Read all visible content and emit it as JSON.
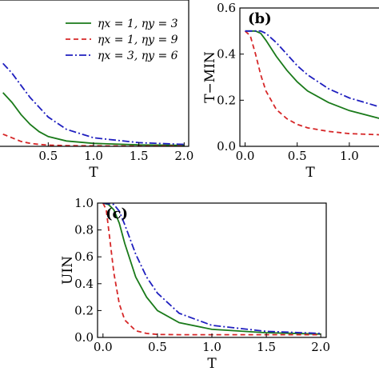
{
  "chart_data": [
    {
      "panel": "",
      "type": "line",
      "xlabel": "T",
      "ylabel": "",
      "xlim": [
        -0.05,
        2.05
      ],
      "ylim": [
        0,
        0.6
      ],
      "xticks": [
        "0.5",
        "1.0",
        "1.5",
        "2.0"
      ],
      "xtick_values": [
        0.5,
        1.0,
        1.5,
        2.0
      ],
      "yticks": [],
      "legend": "top-right",
      "series": [
        {
          "name": "ηx = 1, ηy = 3",
          "color": "#1a7a1a",
          "dash": "solid",
          "x": [
            0,
            0.1,
            0.2,
            0.3,
            0.4,
            0.5,
            0.7,
            1.0,
            1.5,
            2.0
          ],
          "y": [
            0.22,
            0.18,
            0.13,
            0.09,
            0.06,
            0.04,
            0.022,
            0.012,
            0.006,
            0.004
          ]
        },
        {
          "name": "ηx = 1, ηy = 9",
          "color": "#d62728",
          "dash": "dashed",
          "x": [
            0,
            0.1,
            0.2,
            0.3,
            0.4,
            0.5,
            0.7,
            1.0,
            1.5,
            2.0
          ],
          "y": [
            0.05,
            0.035,
            0.02,
            0.012,
            0.008,
            0.005,
            0.003,
            0.002,
            0.001,
            0.001
          ]
        },
        {
          "name": "ηx = 3, ηy = 6",
          "color": "#1f1fbf",
          "dash": "dashdot",
          "x": [
            0,
            0.1,
            0.2,
            0.3,
            0.4,
            0.5,
            0.7,
            1.0,
            1.5,
            2.0
          ],
          "y": [
            0.34,
            0.3,
            0.25,
            0.2,
            0.16,
            0.12,
            0.07,
            0.035,
            0.015,
            0.008
          ]
        }
      ]
    },
    {
      "panel": "(b)",
      "type": "line",
      "xlabel": "T",
      "ylabel": "T−MIN",
      "xlim": [
        -0.05,
        1.3
      ],
      "ylim": [
        0,
        0.6
      ],
      "xticks": [
        "0.0",
        "0.5",
        "1.0"
      ],
      "xtick_values": [
        0,
        0.5,
        1.0
      ],
      "yticks": [
        "0.0",
        "0.2",
        "0.4",
        "0.6"
      ],
      "ytick_values": [
        0,
        0.2,
        0.4,
        0.6
      ],
      "series": [
        {
          "name": "ηx = 1, ηy = 3",
          "color": "#1a7a1a",
          "dash": "solid",
          "x": [
            0,
            0.1,
            0.15,
            0.2,
            0.3,
            0.4,
            0.5,
            0.6,
            0.8,
            1.0,
            1.3
          ],
          "y": [
            0.5,
            0.5,
            0.49,
            0.46,
            0.39,
            0.33,
            0.28,
            0.24,
            0.19,
            0.155,
            0.12
          ]
        },
        {
          "name": "ηx = 1, ηy = 9",
          "color": "#d62728",
          "dash": "dashed",
          "x": [
            0,
            0.05,
            0.1,
            0.15,
            0.2,
            0.3,
            0.4,
            0.5,
            0.6,
            0.8,
            1.0,
            1.3
          ],
          "y": [
            0.5,
            0.48,
            0.4,
            0.31,
            0.24,
            0.16,
            0.12,
            0.095,
            0.08,
            0.065,
            0.055,
            0.05
          ]
        },
        {
          "name": "ηx = 3, ηy = 6",
          "color": "#1f1fbf",
          "dash": "dashdot",
          "x": [
            0,
            0.15,
            0.2,
            0.3,
            0.4,
            0.5,
            0.6,
            0.8,
            1.0,
            1.3
          ],
          "y": [
            0.5,
            0.5,
            0.49,
            0.45,
            0.4,
            0.35,
            0.31,
            0.25,
            0.21,
            0.17
          ]
        }
      ]
    },
    {
      "panel": "(c)",
      "type": "line",
      "xlabel": "T",
      "ylabel": "UIN",
      "xlim": [
        -0.05,
        2.05
      ],
      "ylim": [
        0,
        1.0
      ],
      "xticks": [
        "0.0",
        "0.5",
        "1.0",
        "1.5",
        "2.0"
      ],
      "xtick_values": [
        0,
        0.5,
        1.0,
        1.5,
        2.0
      ],
      "yticks": [
        "0.0",
        "0.2",
        "0.4",
        "0.6",
        "0.8",
        "1.0"
      ],
      "ytick_values": [
        0,
        0.2,
        0.4,
        0.6,
        0.8,
        1.0
      ],
      "series": [
        {
          "name": "ηx = 1, ηy = 3",
          "color": "#1a7a1a",
          "dash": "solid",
          "x": [
            0,
            0.05,
            0.1,
            0.15,
            0.2,
            0.3,
            0.4,
            0.5,
            0.7,
            1.0,
            1.5,
            2.0
          ],
          "y": [
            1.0,
            0.99,
            0.95,
            0.85,
            0.7,
            0.45,
            0.3,
            0.2,
            0.11,
            0.06,
            0.035,
            0.025
          ]
        },
        {
          "name": "ηx = 1, ηy = 9",
          "color": "#d62728",
          "dash": "dashed",
          "x": [
            0,
            0.03,
            0.06,
            0.1,
            0.15,
            0.2,
            0.3,
            0.4,
            0.5,
            0.7,
            1.0,
            1.5,
            2.0
          ],
          "y": [
            1.0,
            0.95,
            0.75,
            0.48,
            0.25,
            0.13,
            0.05,
            0.03,
            0.022,
            0.02,
            0.02,
            0.02,
            0.02
          ]
        },
        {
          "name": "ηx = 3, ηy = 6",
          "color": "#1f1fbf",
          "dash": "dashdot",
          "x": [
            0,
            0.1,
            0.15,
            0.2,
            0.3,
            0.4,
            0.5,
            0.7,
            1.0,
            1.5,
            2.0
          ],
          "y": [
            1.0,
            0.99,
            0.94,
            0.84,
            0.62,
            0.45,
            0.33,
            0.18,
            0.09,
            0.045,
            0.03
          ]
        }
      ]
    }
  ]
}
